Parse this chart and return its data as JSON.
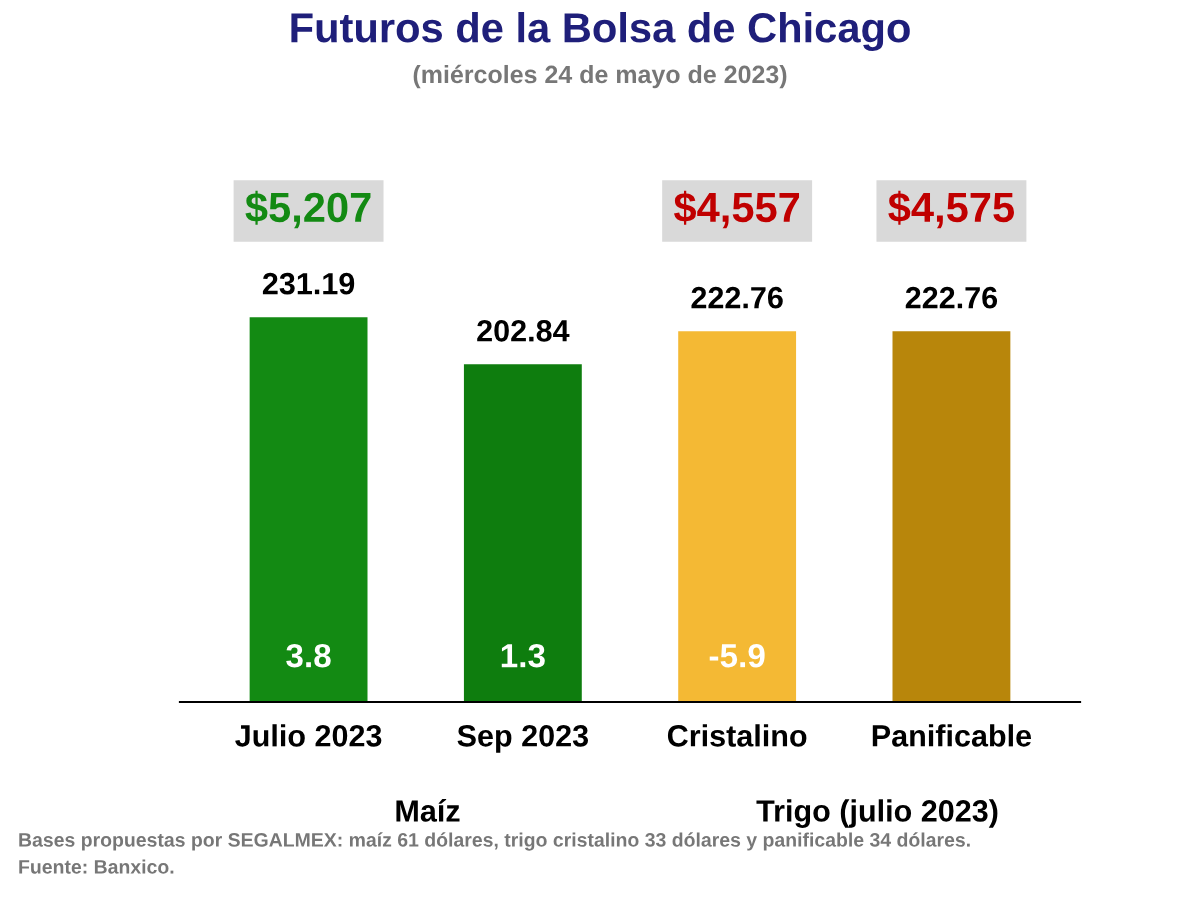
{
  "chart_data": {
    "type": "bar",
    "title": "Futuros de la Bolsa de Chicago",
    "subtitle": "(miércoles 24 de mayo de 2023)",
    "categories": [
      "Julio 2023",
      "Sep 2023",
      "Cristalino",
      "Panificable"
    ],
    "values": [
      231.19,
      202.84,
      222.76,
      222.76
    ],
    "data_labels": true,
    "colors": [
      "#138a13",
      "#0e7d0e",
      "#f4b934",
      "#b8860b"
    ],
    "annotations": [
      "$5,207",
      "$4,557",
      "$4,575",
      "3.8",
      "1.3",
      "-5.9",
      "Maíz",
      "Trigo (julio 2023)",
      "Bases propuestas por SEGALMEX: maíz 61 dólares, trigo cristalino 33 dólares y panificable 34 dólares.",
      "Fuente: Banxico."
    ]
  }
}
